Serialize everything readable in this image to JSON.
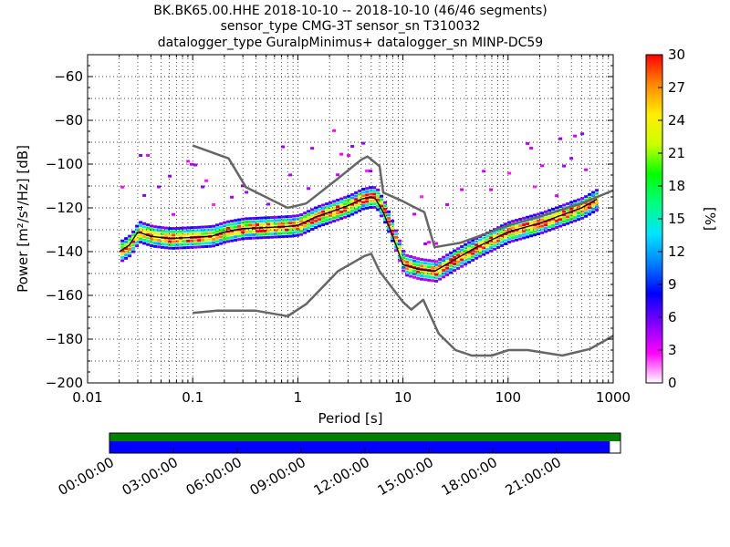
{
  "chart_data": [
    {
      "type": "heatmap",
      "title_lines": [
        "BK.BK65.00.HHE   2018-10-10 -- 2018-10-10  (46/46 segments)",
        "sensor_type CMG-3T sensor_sn T310032",
        "datalogger_type GuralpMinimus+ datalogger_sn MINP-DC59"
      ],
      "xlabel": "Period [s]",
      "ylabel": "Power [m²/s⁴/Hz] [dB]",
      "x_scale": "log",
      "xlim": [
        0.01,
        1000
      ],
      "ylim": [
        -200,
        -50
      ],
      "x_ticks": [
        {
          "value": 0.01,
          "label": "0.01"
        },
        {
          "value": 0.1,
          "label": "0.1"
        },
        {
          "value": 1,
          "label": "1"
        },
        {
          "value": 10,
          "label": "10"
        },
        {
          "value": 100,
          "label": "100"
        },
        {
          "value": 1000,
          "label": "1000"
        }
      ],
      "y_ticks": [
        {
          "value": -60,
          "label": "−60"
        },
        {
          "value": -80,
          "label": "−80"
        },
        {
          "value": -100,
          "label": "−100"
        },
        {
          "value": -120,
          "label": "−120"
        },
        {
          "value": -140,
          "label": "−140"
        },
        {
          "value": -160,
          "label": "−160"
        },
        {
          "value": -180,
          "label": "−180"
        },
        {
          "value": -200,
          "label": "−200"
        }
      ],
      "grid": "dotted",
      "nhnm": {
        "x": [
          0.1,
          0.17,
          0.4,
          0.8,
          1.2,
          2.4,
          4.3,
          5.0,
          6.0,
          10,
          12,
          15.6,
          21.9,
          31.6,
          45,
          70,
          101,
          154,
          328,
          600,
          1000
        ],
        "y": [
          -168,
          -167,
          -167,
          -169.5,
          -164,
          -149,
          -142,
          -141,
          -149,
          -163,
          -166.5,
          -162,
          -177.5,
          -185,
          -187.5,
          -187.5,
          -185,
          -185,
          -187.5,
          -184.5,
          -178.5
        ]
      },
      "nlnm": {
        "x": [
          0.1,
          0.22,
          0.32,
          0.8,
          1.2,
          2.5,
          4.0,
          4.6,
          6.0,
          6.5,
          10,
          12,
          16,
          20,
          35,
          60,
          100,
          200,
          500,
          1000
        ],
        "y": [
          -91.5,
          -97.4,
          -110.5,
          -120,
          -118,
          -106,
          -98,
          -96.5,
          -101,
          -113,
          -117,
          -119,
          -122,
          -138,
          -136,
          -132,
          -128,
          -124,
          -118,
          -112
        ]
      },
      "mode": {
        "x": [
          0.02,
          0.025,
          0.03,
          0.04,
          0.06,
          0.1,
          0.15,
          0.2,
          0.3,
          0.5,
          0.8,
          1,
          1.5,
          2,
          3,
          4,
          5,
          5.5,
          6.5,
          8,
          10,
          14,
          20,
          30,
          50,
          100,
          200,
          500,
          700
        ],
        "y": [
          -140,
          -137,
          -131,
          -133,
          -134,
          -133.5,
          -133,
          -131,
          -129.5,
          -129,
          -128.5,
          -128,
          -124,
          -122,
          -119,
          -116,
          -115,
          -116,
          -122,
          -133,
          -146,
          -148,
          -149,
          -144,
          -138,
          -131,
          -127,
          -120,
          -116
        ]
      },
      "colorbar": {
        "label": "[%]",
        "range": [
          0,
          30
        ],
        "ticks": [
          "0",
          "3",
          "6",
          "9",
          "12",
          "15",
          "18",
          "21",
          "24",
          "27",
          "30"
        ],
        "stops": [
          "#ffffff",
          "#ff00ff",
          "#8000ff",
          "#0000ff",
          "#0080ff",
          "#00e5ff",
          "#00ff80",
          "#00ff00",
          "#ccff00",
          "#ffee00",
          "#ff8800",
          "#ff0000"
        ]
      }
    },
    {
      "type": "bar",
      "description_free": true,
      "time_ticks": [
        "00:00:00",
        "03:00:00",
        "06:00:00",
        "09:00:00",
        "12:00:00",
        "15:00:00",
        "18:00:00",
        "21:00:00"
      ],
      "range_hours": [
        0,
        24
      ],
      "data_available_hours": [
        0,
        24
      ],
      "used_hours": [
        0,
        23.5
      ],
      "colors": {
        "available": "#008000",
        "used": "#0000ff"
      }
    }
  ]
}
